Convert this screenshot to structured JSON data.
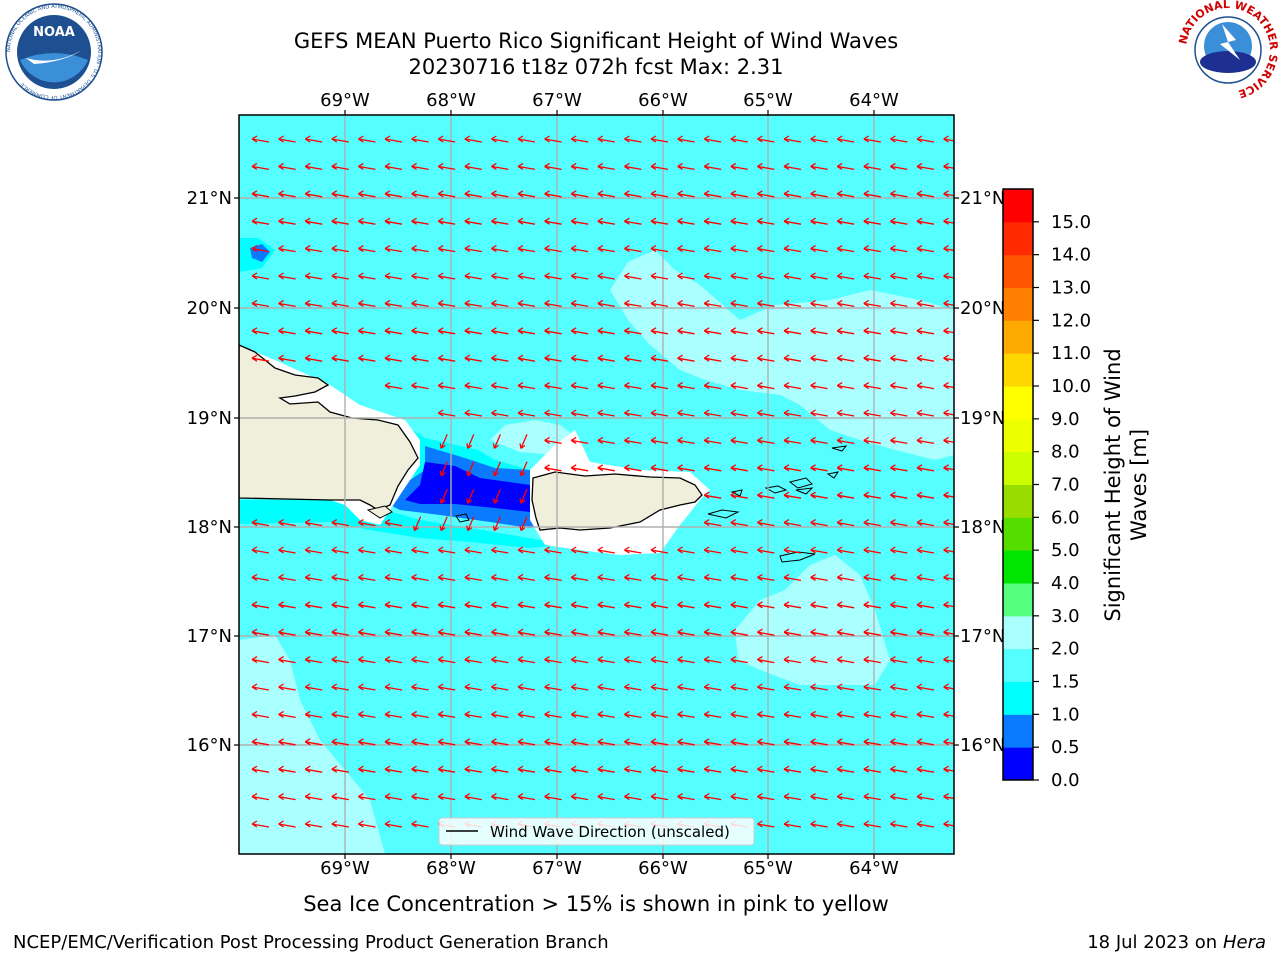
{
  "header": {
    "title_line1": "GEFS MEAN Puerto Rico Significant Height of Wind Waves",
    "title_line2": "20230716 t18z 072h fcst   Max: 2.31"
  },
  "logos": {
    "noaa_text": "NOAA",
    "noaa_ring_text": "NATIONAL OCEANIC AND ATMOSPHERIC ADMINISTRATION · U.S. DEPARTMENT OF COMMERCE",
    "nws_ring_text": "NATIONAL WEATHER SERVICE"
  },
  "map": {
    "lon_ticks": [
      "69°W",
      "68°W",
      "67°W",
      "66°W",
      "65°W",
      "64°W"
    ],
    "lat_ticks": [
      "21°N",
      "20°N",
      "19°N",
      "18°N",
      "17°N",
      "16°N"
    ],
    "legend_label": "Wind Wave Direction (unscaled)",
    "arrow_color": "#ff0000"
  },
  "colorbar": {
    "label_line1": "Significant Height of Wind",
    "label_line2": "Waves [m]",
    "ticks": [
      "0.0",
      "0.5",
      "1.0",
      "1.5",
      "2.0",
      "3.0",
      "4.0",
      "5.0",
      "6.0",
      "7.0",
      "8.0",
      "9.0",
      "10.0",
      "11.0",
      "12.0",
      "13.0",
      "14.0",
      "15.0"
    ],
    "colors": [
      "#0000ff",
      "#0a7bff",
      "#00ffff",
      "#55ffff",
      "#aaffff",
      "#55ff7f",
      "#00e600",
      "#55dd00",
      "#99dd00",
      "#ccff00",
      "#eeff00",
      "#ffff00",
      "#ffd700",
      "#ffaa00",
      "#ff8000",
      "#ff5500",
      "#ff2a00",
      "#ff0000"
    ]
  },
  "notes": {
    "ice": "Sea Ice Concentration > 15% is shown in pink to yellow"
  },
  "footer": {
    "left": "NCEP/EMC/Verification Post Processing Product Generation Branch",
    "right_prefix": "18 Jul 2023 on ",
    "right_host": "Hera"
  }
}
